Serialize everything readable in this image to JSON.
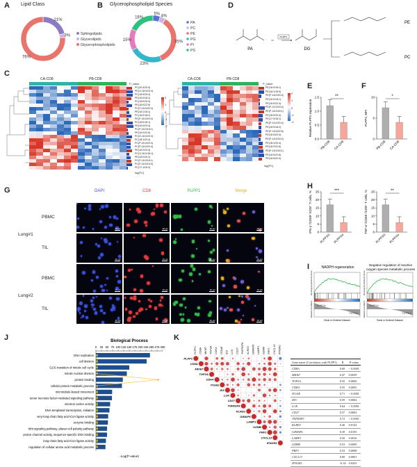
{
  "panels": {
    "A": {
      "label": "A",
      "title": "Lipid Class",
      "legend": [
        "Sphingolipids",
        "Glycerolipids",
        "Glycerophospholipids"
      ],
      "slices": [
        {
          "name": "Sphingolipids",
          "value": 21,
          "label": "21%",
          "color": "#8e7cc3"
        },
        {
          "name": "Glycerolipids",
          "value": 3,
          "label": "3%",
          "color": "#c9b6e4"
        },
        {
          "name": "Glycerophospholipids",
          "value": 76,
          "label": "76%",
          "color": "#e8746d"
        }
      ]
    },
    "B": {
      "label": "B",
      "title": "Glycerophospholipid Species",
      "legend": [
        "PA",
        "PC",
        "PE",
        "PG",
        "PI",
        "PS"
      ],
      "slices": [
        {
          "name": "PA",
          "value": 5,
          "label": "5%",
          "color": "#5b6fd6"
        },
        {
          "name": "PC",
          "value": 4,
          "label": "4%",
          "color": "#c9b6e4"
        },
        {
          "name": "PE",
          "value": 35,
          "label": "35%",
          "color": "#e8746d"
        },
        {
          "name": "PG",
          "value": 23,
          "label": "23%",
          "color": "#34b6c9"
        },
        {
          "name": "PI",
          "value": 15,
          "label": "15%",
          "color": "#e879c0"
        },
        {
          "name": "PS",
          "value": 18,
          "label": "18%",
          "color": "#2ec27e"
        }
      ]
    },
    "C": {
      "label": "C",
      "left_groups": [
        "CA-CD8",
        "PB-CD8"
      ],
      "right_groups": [
        "CA-CD8",
        "PB-CD8"
      ],
      "xlabel": "log(FC)",
      "pval": "P_value",
      "left_rows": [
        "PC(20:4/20:4)",
        "PE(O-18:0/20:4)",
        "PC(16:0/20:4)",
        "PE(18:0/18:1)",
        "PC(18:0/20:3)",
        "PE(18:0/22:5)",
        "PC(P-18:0/20:4)",
        "PE(18:1/18:1)",
        "PC(16:0/18:2)",
        "PE(P-18:0/20:4)",
        "PC(18:0/18:1)",
        "PE(16:0/20:4)",
        "PC(P-18:0/18:1)",
        "PE(16:0/22:6)",
        "PC(O-16:0/20:4)",
        "PC(18:1/20:4)",
        "PC(P-20:0/20:4)",
        "PC(P-18:0/20:4)",
        "PE(18:2/20:4)",
        "PC(O-16:0/18:1)",
        "PE(18:0/20:2)",
        "PC(P-16:0/18:1)",
        "PC(P-18:0/16:0)",
        "PC(17:1/20:4)"
      ],
      "right_rows": [
        "PE(18:0/18:1)",
        "PE(18:1/18:0)",
        "PE(P-18:0/20:4)",
        "PE(16:0/18:1)",
        "PE(18:0/22:4)",
        "PE(P-20:0/20:4)",
        "PE(P-18:0/18:1)",
        "PE(18:0/20:4)",
        "PE(17:0/18:1)",
        "PE(P-16:0/20:4)",
        "PE(18:0/18:2)",
        "PE(P-18:0/22:6)",
        "PE(16:0/20:4)",
        "PE(P-18:0/16:0)",
        "PE(18:1/20:4)",
        "PE(18:2/22:6)",
        "PE(P-16:0/18:1)",
        "PE(18:0/22:6)",
        "PE(18:0/20:3)"
      ],
      "scale": [
        "2",
        "1",
        "0",
        "-1",
        "-2"
      ]
    },
    "D": {
      "label": "D",
      "nodes": [
        "PA",
        "DG",
        "PE",
        "PC"
      ],
      "enzyme": "PLPP1"
    },
    "E": {
      "label": "E",
      "ylabel": "Relative PLPP1 expression",
      "sig": "**"
    },
    "F": {
      "label": "F",
      "ylabel": "PLPP1, MFI",
      "sig": "*"
    },
    "G": {
      "label": "G",
      "channels": [
        "DAPI",
        "CD8",
        "PLPP1",
        "Merge"
      ],
      "channel_colors": [
        "#3a4fd8",
        "#e03a3a",
        "#35b84a",
        "#e0b020"
      ],
      "groups": [
        {
          "name": "Lung#1",
          "rows": [
            "PBMC",
            "TIL"
          ]
        },
        {
          "name": "Lung#2",
          "rows": [
            "PBMC",
            "TIL"
          ]
        }
      ],
      "scale": "20 μm"
    },
    "H": {
      "label": "H",
      "left_ylabel": "IFN-γ⁺/CD69⁺/CD8⁺ T cells, %",
      "right_ylabel": "TNF-α⁺/CD69⁺/CD8⁺ T cells, %",
      "sig_left": "***",
      "sig_right": "**"
    },
    "I": {
      "label": "I",
      "left_title": "NADPH regeneration",
      "right_title": "Negative regulation of reactive oxygen species metabolic process",
      "es_label": "Running Enrichment Score",
      "rank_label": "Ranked List Metric",
      "xlabel": "Rank in Ordered Dataset",
      "hi": "PLPP1hi",
      "lo": "PLPP1lo"
    },
    "J": {
      "label": "J",
      "title": "Biological Process",
      "xlabel": "-Log(P-value)",
      "ticks": [
        "0",
        "25",
        "50",
        "75",
        "100",
        "125",
        "150",
        "175",
        "200",
        "225",
        "250",
        "275",
        "300"
      ]
    },
    "K": {
      "label": "K",
      "genes": [
        "PLPP1",
        "CD8A",
        "MKI67",
        "TOP2A",
        "CDK4",
        "ITGAE",
        "ID3",
        "LCK",
        "CD27",
        "TNFRSF9",
        "KLRD1",
        "GIMAP6",
        "LAMP1",
        "GZMB",
        "PRF1",
        "CXCL13",
        "IFNGR1"
      ]
    }
  },
  "chart_data": [
    {
      "type": "bar",
      "panel": "E",
      "categories": [
        "PB-CD8",
        "CA-CD8"
      ],
      "values": [
        1.2,
        0.6
      ],
      "ylim": [
        0,
        1.5
      ],
      "yticks": [
        "0.0",
        "0.5",
        "1.0",
        "1.5"
      ],
      "colors": [
        "#aeaeae",
        "#f4a79a"
      ]
    },
    {
      "type": "bar",
      "panel": "F",
      "categories": [
        "PB-CD8",
        "CA-CD8"
      ],
      "values": [
        7.5,
        4.0
      ],
      "ylim": [
        0,
        10
      ],
      "yticks": [
        "0",
        "5",
        "10"
      ],
      "colors": [
        "#aeaeae",
        "#f4a79a"
      ]
    },
    {
      "type": "bar",
      "panel": "H-left",
      "categories": [
        "PLPP1hi",
        "PLPP1lo"
      ],
      "values": [
        17,
        6
      ],
      "ylim": [
        0,
        25
      ],
      "yticks": [
        "0",
        "5",
        "10",
        "15",
        "20",
        "25"
      ],
      "colors": [
        "#aeaeae",
        "#f4a79a"
      ]
    },
    {
      "type": "bar",
      "panel": "H-right",
      "categories": [
        "PLPP1hi",
        "PLPP1lo"
      ],
      "values": [
        17,
        6
      ],
      "ylim": [
        0,
        25
      ],
      "yticks": [
        "0",
        "5",
        "10",
        "15",
        "20",
        "25"
      ],
      "colors": [
        "#aeaeae",
        "#f4a79a"
      ]
    },
    {
      "type": "bar",
      "panel": "J",
      "title": "Biological Process",
      "xlabel": "-Log(P-value)",
      "xlim": [
        0,
        300
      ],
      "categories": [
        "DNA replication",
        "cell division",
        "G1/S transition of mitotic cell cycle",
        "mitotic nuclear division",
        "protein binding",
        "cellular protein metabolic process",
        "microtubule-based movement",
        "tumor necrosis factor-mediated signaling pathway",
        "electron carrier activity",
        "DNA-templated transcription, initiation",
        "very-long-chain fatty acid-CoA ligase activity",
        "enzyme binding",
        "Wnt signaling pathway, planar cell polarity pathway",
        "proton channel activity, sequence-specific DNA binding",
        "long-chain fatty acid-CoA ligase activity",
        "regulation of cellular amino acid metabolic process"
      ],
      "values": [
        243,
        228,
        150,
        139,
        121,
        117,
        73,
        72,
        64,
        61,
        55,
        54,
        50,
        50,
        45,
        43
      ],
      "line": [
        5,
        5,
        5,
        5,
        280,
        5,
        5,
        5,
        5,
        5,
        5,
        5,
        5,
        5,
        5,
        5
      ]
    },
    {
      "type": "table",
      "panel": "K",
      "columns": [
        "Gene name (Correlation with PLPP1)",
        "R",
        "P-value"
      ],
      "rows": [
        [
          "CD8A",
          "0.69",
          "< 0.0001"
        ],
        [
          "MKI67",
          "0.47",
          "0.0039"
        ],
        [
          "TOP2A",
          "0.55",
          "0.0006"
        ],
        [
          "CDK4",
          "0.55",
          "0.0005"
        ],
        [
          "ITGAE",
          "0.71",
          "< 0.0001"
        ],
        [
          "ID3",
          "0.59",
          "0.0002"
        ],
        [
          "LCK",
          "0.64",
          "< 0.0001"
        ],
        [
          "CD27",
          "0.57",
          "0.0002"
        ],
        [
          "TNFRSF9",
          "0.72",
          "< 0.0001"
        ],
        [
          "KLRD1",
          "0.40",
          "0.0143"
        ],
        [
          "GIMAP6",
          "0.39",
          "0.0195"
        ],
        [
          "LAMP1",
          "0.50",
          "0.0016"
        ],
        [
          "GZMB",
          "0.53",
          "0.0009"
        ],
        [
          "PRF1",
          "0.53",
          "0.0008"
        ],
        [
          "CXCL13",
          "0.60",
          "0.0001"
        ],
        [
          "IFNGR1",
          "-0.34",
          "0.0433"
        ]
      ]
    }
  ]
}
